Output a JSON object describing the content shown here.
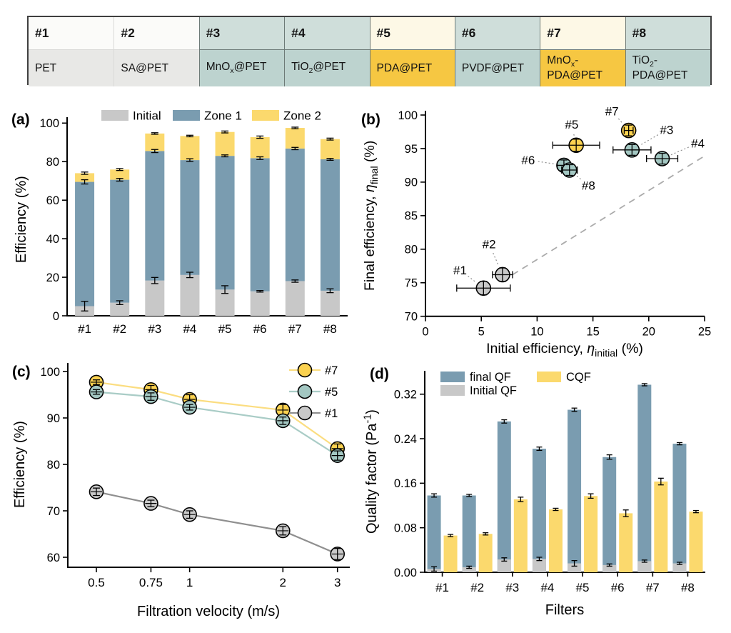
{
  "table": {
    "columns": [
      {
        "id": "#1",
        "name": "PET",
        "header_bg": "#fbfbf9",
        "body_bg": "#e8e8e6"
      },
      {
        "id": "#2",
        "name": "SA@PET",
        "header_bg": "#fbfbf9",
        "body_bg": "#e8e8e6"
      },
      {
        "id": "#3",
        "name": "MnO~x~@PET",
        "header_bg": "#cfdeda",
        "body_bg": "#bdd3cf"
      },
      {
        "id": "#4",
        "name": "TiO~2~@PET",
        "header_bg": "#cfdeda",
        "body_bg": "#bdd3cf"
      },
      {
        "id": "#5",
        "name": "PDA@PET",
        "header_bg": "#fdf8e6",
        "body_bg": "#f6c742"
      },
      {
        "id": "#6",
        "name": "PVDF@PET",
        "header_bg": "#cfdeda",
        "body_bg": "#bdd3cf"
      },
      {
        "id": "#7",
        "name": "MnO~x~-\nPDA@PET",
        "header_bg": "#fdf8e6",
        "body_bg": "#f6c742"
      },
      {
        "id": "#8",
        "name": "TiO~2~-\nPDA@PET",
        "header_bg": "#cfdeda",
        "body_bg": "#bdd3cf"
      }
    ]
  },
  "colors": {
    "bar_blue": "#7a9cb0",
    "bar_yellow": "#fbd96d",
    "bar_gray": "#c8c8c8",
    "marker_teal": "#a3c7c2",
    "marker_yellow": "#fbd250",
    "marker_gray": "#c9c9c9",
    "line_yellow": "#fbdd80",
    "line_teal": "#a9ccc6",
    "line_gray": "#8f8f8f",
    "dash_gray": "#ababab"
  },
  "chart_data": [
    {
      "panel": "(a)",
      "type": "bar",
      "stacked": true,
      "values_are_cumulative": true,
      "categories": [
        "#1",
        "#2",
        "#3",
        "#4",
        "#5",
        "#6",
        "#7",
        "#8"
      ],
      "ylabel": "Efficiency (%)",
      "ylim": [
        0,
        100
      ],
      "yticks": [
        0,
        20,
        40,
        60,
        80,
        100
      ],
      "series": [
        {
          "name": "Initial",
          "color_key": "bar_gray",
          "values": [
            5.0,
            6.8,
            18.3,
            21.2,
            13.6,
            12.7,
            18.0,
            13.0
          ],
          "errors": [
            2.5,
            1.0,
            1.6,
            1.4,
            2.0,
            0.4,
            0.6,
            1.0
          ]
        },
        {
          "name": "Zone 1",
          "color_key": "bar_blue",
          "values": [
            69.5,
            70.6,
            85.5,
            80.8,
            83.0,
            81.8,
            86.8,
            81.2
          ],
          "errors": [
            1.1,
            0.7,
            0.8,
            0.7,
            0.5,
            0.7,
            0.6,
            0.5
          ]
        },
        {
          "name": "Zone 2",
          "color_key": "bar_yellow",
          "values": [
            74.0,
            75.9,
            94.6,
            93.3,
            95.4,
            92.7,
            97.5,
            91.7
          ],
          "errors": [
            0.6,
            0.5,
            0.4,
            0.4,
            0.5,
            0.6,
            0.4,
            0.5
          ]
        }
      ]
    },
    {
      "panel": "(b)",
      "type": "scatter",
      "xlabel": "Initial efficiency, *η*~initial~ (%)",
      "ylabel": "Final efficiency, *η*~final~ (%)",
      "xlim": [
        0,
        25
      ],
      "ylim": [
        70,
        100
      ],
      "xticks": [
        0,
        5,
        10,
        15,
        20,
        25
      ],
      "yticks": [
        70,
        75,
        80,
        85,
        90,
        95,
        100
      ],
      "diagonal_guide": {
        "x1": 7.8,
        "y1": 76.2,
        "x2": 25.0,
        "y2": 93.9,
        "style": "dashed"
      },
      "points": [
        {
          "label": "#1",
          "x": 5.2,
          "y": 74.2,
          "xerr": 2.4,
          "yerr": 1.0,
          "color_key": "marker_gray",
          "label_at": [
            3.1,
            76.9
          ]
        },
        {
          "label": "#2",
          "x": 6.9,
          "y": 76.2,
          "xerr": 0.9,
          "yerr": 1.0,
          "color_key": "marker_gray",
          "label_at": [
            5.7,
            80.8
          ]
        },
        {
          "label": "#6",
          "x": 12.4,
          "y": 92.5,
          "xerr": 0.6,
          "yerr": 0.8,
          "color_key": "marker_teal",
          "label_at": [
            9.2,
            93.3
          ]
        },
        {
          "label": "#8",
          "x": 12.9,
          "y": 91.8,
          "xerr": 0.7,
          "yerr": 0.8,
          "color_key": "marker_teal",
          "label_at": [
            14.6,
            89.5
          ]
        },
        {
          "label": "#5",
          "x": 13.5,
          "y": 95.5,
          "xerr": 2.1,
          "yerr": 0.9,
          "color_key": "marker_yellow",
          "label_at": [
            13.1,
            98.6
          ]
        },
        {
          "label": "#7",
          "x": 18.2,
          "y": 97.7,
          "xerr": 0.4,
          "yerr": 0.8,
          "color_key": "marker_yellow",
          "label_at": [
            16.7,
            100.6
          ]
        },
        {
          "label": "#3",
          "x": 18.5,
          "y": 94.8,
          "xerr": 1.7,
          "yerr": 0.8,
          "color_key": "marker_teal",
          "label_at": [
            21.6,
            97.8
          ]
        },
        {
          "label": "#4",
          "x": 21.2,
          "y": 93.5,
          "xerr": 1.4,
          "yerr": 0.8,
          "color_key": "marker_teal",
          "label_at": [
            24.4,
            95.8
          ]
        }
      ]
    },
    {
      "panel": "(c)",
      "type": "line",
      "xlabel": "Filtration velocity (m/s)",
      "ylabel": "Efficiency (%)",
      "x": [
        0.5,
        0.75,
        1,
        2,
        3
      ],
      "xscale": "log",
      "ylim": [
        58,
        101.5
      ],
      "yticks": [
        60,
        70,
        80,
        90,
        100
      ],
      "series": [
        {
          "name": "#7",
          "color_key": "marker_yellow",
          "line_key": "line_yellow",
          "values": [
            97.7,
            96.1,
            94.0,
            91.7,
            83.4
          ],
          "errors": [
            0.5,
            0.9,
            1.0,
            1.2,
            1.0
          ]
        },
        {
          "name": "#5",
          "color_key": "marker_teal",
          "line_key": "line_teal",
          "values": [
            95.6,
            94.6,
            92.3,
            89.4,
            81.9
          ],
          "errors": [
            0.5,
            0.8,
            0.6,
            0.8,
            1.0
          ]
        },
        {
          "name": "#1",
          "color_key": "marker_gray",
          "line_key": "line_gray",
          "values": [
            74.1,
            71.6,
            69.2,
            65.7,
            60.7
          ],
          "errors": [
            0.8,
            0.7,
            0.8,
            0.9,
            1.2
          ]
        }
      ],
      "legend_position": "top-right"
    },
    {
      "panel": "(d)",
      "type": "bar",
      "grouped": true,
      "categories": [
        "#1",
        "#2",
        "#3",
        "#4",
        "#5",
        "#6",
        "#7",
        "#8"
      ],
      "xlabel": "Filters",
      "ylabel": "Quality factor (Pa^-1^)",
      "ylim": [
        0,
        0.353
      ],
      "yticks": [
        0,
        0.08,
        0.16,
        0.24,
        0.32
      ],
      "series": [
        {
          "name": "final QF",
          "color_key": "bar_blue",
          "values": [
            0.138,
            0.138,
            0.271,
            0.222,
            0.292,
            0.207,
            0.337,
            0.231
          ],
          "errors": [
            0.003,
            0.002,
            0.003,
            0.003,
            0.003,
            0.004,
            0.002,
            0.002
          ]
        },
        {
          "name": "Initial QF",
          "color_key": "bar_gray",
          "overlay_on": "final QF",
          "values": [
            0.006,
            0.009,
            0.023,
            0.024,
            0.016,
            0.013,
            0.02,
            0.016
          ],
          "errors": [
            0.004,
            0.002,
            0.003,
            0.003,
            0.005,
            0.002,
            0.002,
            0.002
          ]
        },
        {
          "name": "CQF",
          "color_key": "bar_yellow",
          "values": [
            0.066,
            0.069,
            0.131,
            0.113,
            0.137,
            0.106,
            0.163,
            0.109
          ],
          "errors": [
            0.002,
            0.002,
            0.004,
            0.002,
            0.004,
            0.006,
            0.006,
            0.002
          ]
        }
      ]
    }
  ]
}
